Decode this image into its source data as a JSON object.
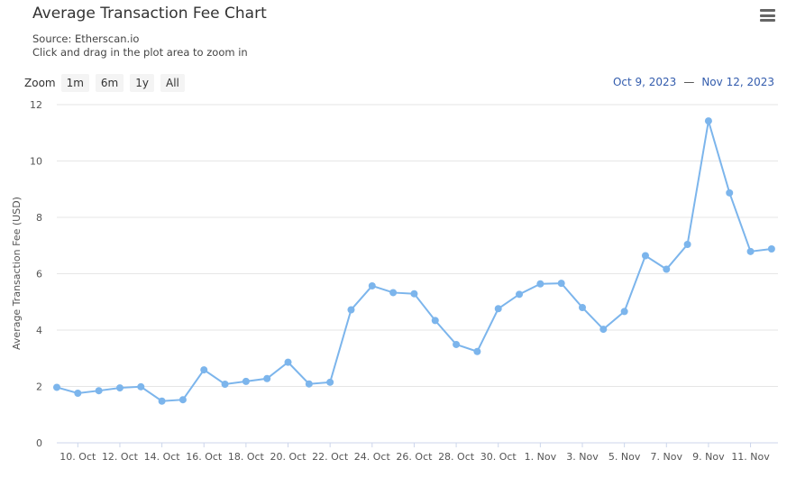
{
  "header": {
    "title": "Average Transaction Fee Chart",
    "source": "Source: Etherscan.io",
    "hint": "Click and drag in the plot area to zoom in"
  },
  "zoom": {
    "label": "Zoom",
    "buttons": [
      "1m",
      "6m",
      "1y",
      "All"
    ]
  },
  "range": {
    "from": "Oct 9, 2023",
    "separator": "—",
    "to": "Nov 12, 2023"
  },
  "icons": {
    "menu": "hamburger-menu-icon"
  },
  "colors": {
    "series": "#7cb5ec",
    "grid": "#e6e6e6"
  },
  "chart_data": {
    "type": "line",
    "ylabel": "Average Transaction Fee (USD)",
    "ylim": [
      0,
      12
    ],
    "yticks": [
      0,
      2,
      4,
      6,
      8,
      10,
      12
    ],
    "x": [
      "2023-10-09",
      "2023-10-10",
      "2023-10-11",
      "2023-10-12",
      "2023-10-13",
      "2023-10-14",
      "2023-10-15",
      "2023-10-16",
      "2023-10-17",
      "2023-10-18",
      "2023-10-19",
      "2023-10-20",
      "2023-10-21",
      "2023-10-22",
      "2023-10-23",
      "2023-10-24",
      "2023-10-25",
      "2023-10-26",
      "2023-10-27",
      "2023-10-28",
      "2023-10-29",
      "2023-10-30",
      "2023-10-31",
      "2023-11-01",
      "2023-11-02",
      "2023-11-03",
      "2023-11-04",
      "2023-11-05",
      "2023-11-06",
      "2023-11-07",
      "2023-11-08",
      "2023-11-09",
      "2023-11-10",
      "2023-11-11",
      "2023-11-12"
    ],
    "values": [
      1.97,
      1.76,
      1.85,
      1.95,
      1.99,
      1.48,
      1.53,
      2.59,
      2.08,
      2.18,
      2.28,
      2.86,
      2.09,
      2.15,
      4.72,
      5.57,
      5.33,
      5.29,
      4.34,
      3.49,
      3.24,
      4.76,
      5.27,
      5.64,
      5.66,
      4.8,
      4.03,
      4.66,
      6.64,
      6.16,
      7.04,
      11.42,
      8.87,
      6.79,
      6.88
    ],
    "xticks": [
      {
        "label": "10. Oct",
        "x": "2023-10-10"
      },
      {
        "label": "12. Oct",
        "x": "2023-10-12"
      },
      {
        "label": "14. Oct",
        "x": "2023-10-14"
      },
      {
        "label": "16. Oct",
        "x": "2023-10-16"
      },
      {
        "label": "18. Oct",
        "x": "2023-10-18"
      },
      {
        "label": "20. Oct",
        "x": "2023-10-20"
      },
      {
        "label": "22. Oct",
        "x": "2023-10-22"
      },
      {
        "label": "24. Oct",
        "x": "2023-10-24"
      },
      {
        "label": "26. Oct",
        "x": "2023-10-26"
      },
      {
        "label": "28. Oct",
        "x": "2023-10-28"
      },
      {
        "label": "30. Oct",
        "x": "2023-10-30"
      },
      {
        "label": "1. Nov",
        "x": "2023-11-01"
      },
      {
        "label": "3. Nov",
        "x": "2023-11-03"
      },
      {
        "label": "5. Nov",
        "x": "2023-11-05"
      },
      {
        "label": "7. Nov",
        "x": "2023-11-07"
      },
      {
        "label": "9. Nov",
        "x": "2023-11-09"
      },
      {
        "label": "11. Nov",
        "x": "2023-11-11"
      }
    ],
    "grid": true,
    "legend": "none"
  }
}
